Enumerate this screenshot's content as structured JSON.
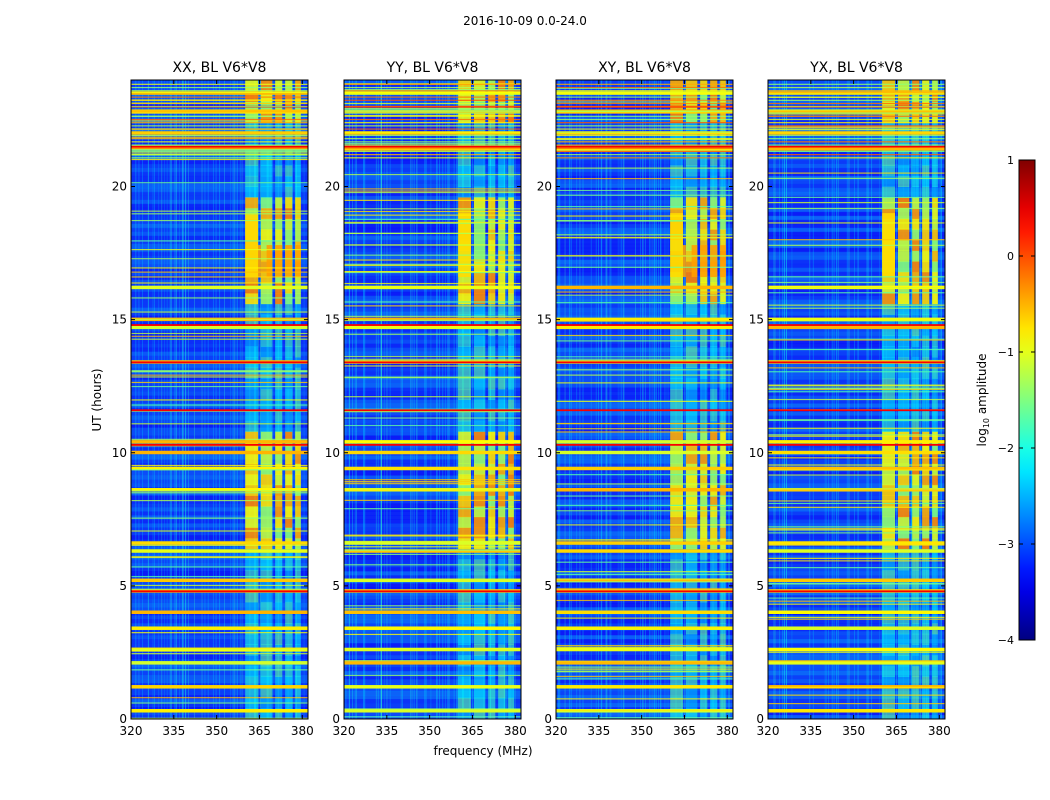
{
  "chart_data": {
    "type": "heatmap",
    "suptitle": "2016-10-09 0.0-24.0",
    "xlabel": "frequency (MHz)",
    "ylabel": "UT (hours)",
    "xlim": [
      320,
      382
    ],
    "ylim": [
      0,
      24
    ],
    "xticks": [
      320,
      335,
      350,
      365,
      380
    ],
    "yticks": [
      0,
      5,
      10,
      15,
      20
    ],
    "panels": [
      {
        "title": "XX, BL V6*V8"
      },
      {
        "title": "YY, BL V6*V8"
      },
      {
        "title": "XY, BL V6*V8"
      },
      {
        "title": "YX, BL V6*V8"
      }
    ],
    "colorbar": {
      "label_prefix": "log",
      "label_sub": "10",
      "label_suffix": " amplitude",
      "range": [
        -4,
        1
      ],
      "ticks": [
        1,
        0,
        -1,
        -2,
        -3,
        -4
      ],
      "tick_labels": [
        "1",
        "0",
        "−1",
        "−2",
        "−3",
        "−4"
      ],
      "colormap": "jet"
    },
    "rfi_bands_mhz": [
      [
        360,
        364.5
      ],
      [
        365.5,
        369.5
      ],
      [
        370.5,
        373
      ],
      [
        374,
        376.5
      ],
      [
        377.5,
        379.5
      ]
    ],
    "bright_ut_bands_hours": [
      0.3,
      1.2,
      2.1,
      2.6,
      3.4,
      4.0,
      4.8,
      5.2,
      6.3,
      6.6,
      8.6,
      9.4,
      10.0,
      10.4,
      13.4,
      14.7,
      15.0,
      16.2,
      21.4,
      22.0,
      22.8,
      23.5
    ],
    "red_ut_lines_hours": [
      4.8,
      10.3,
      11.6,
      13.4,
      14.8,
      21.5,
      23.0
    ]
  }
}
